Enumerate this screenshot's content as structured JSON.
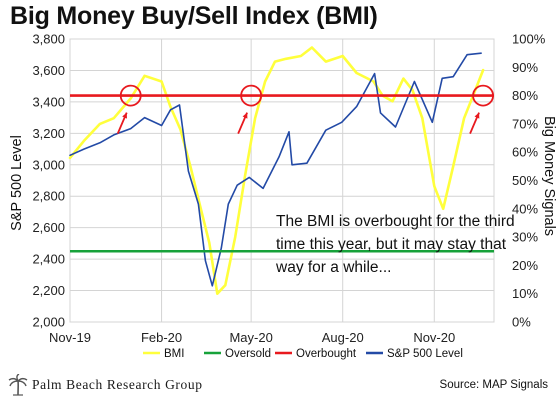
{
  "chart_data": {
    "type": "line",
    "title": "Big Money Buy/Sell Index (BMI)",
    "ylabel": "S&P 500 Level",
    "y2label": "Big Money Signals",
    "x_ticks": [
      "Nov-19",
      "Feb-20",
      "May-20",
      "Aug-20",
      "Nov-20"
    ],
    "ylim": [
      2000,
      3800
    ],
    "y_ticks": [
      "2,000",
      "2,200",
      "2,400",
      "2,600",
      "2,800",
      "3,000",
      "3,200",
      "3,400",
      "3,600",
      "3,800"
    ],
    "y2lim": [
      0,
      100
    ],
    "y2_ticks": [
      "0%",
      "10%",
      "20%",
      "30%",
      "40%",
      "50%",
      "60%",
      "70%",
      "80%",
      "90%",
      "100%"
    ],
    "grid": true,
    "legend_position": "bottom",
    "reference_lines": [
      {
        "name": "Oversold",
        "axis": "right",
        "value": 25,
        "color": "#17a23a"
      },
      {
        "name": "Overbought",
        "axis": "right",
        "value": 80,
        "color": "#e8191e"
      }
    ],
    "series": [
      {
        "name": "BMI",
        "axis": "right",
        "color": "#ffff3c",
        "x": [
          "2019-11-01",
          "2019-11-15",
          "2019-12-01",
          "2019-12-15",
          "2020-01-01",
          "2020-01-15",
          "2020-02-01",
          "2020-02-10",
          "2020-02-20",
          "2020-03-01",
          "2020-03-10",
          "2020-03-20",
          "2020-03-28",
          "2020-04-05",
          "2020-04-15",
          "2020-04-25",
          "2020-05-05",
          "2020-05-15",
          "2020-05-25",
          "2020-06-05",
          "2020-06-20",
          "2020-07-01",
          "2020-07-15",
          "2020-08-01",
          "2020-08-15",
          "2020-09-01",
          "2020-09-10",
          "2020-09-20",
          "2020-10-01",
          "2020-10-10",
          "2020-10-20",
          "2020-11-01",
          "2020-11-10",
          "2020-11-20",
          "2020-12-01",
          "2020-12-10",
          "2020-12-20"
        ],
        "y": [
          58,
          64,
          70,
          72,
          79,
          87,
          85,
          76,
          68,
          55,
          42,
          28,
          10,
          13,
          30,
          52,
          72,
          85,
          92,
          93,
          94,
          97,
          92,
          94,
          88,
          85,
          80,
          78,
          86,
          82,
          72,
          48,
          40,
          55,
          72,
          80,
          89
        ]
      },
      {
        "name": "S&P 500 Level",
        "axis": "left",
        "color": "#234aa6",
        "x": [
          "2019-11-01",
          "2019-11-15",
          "2019-12-01",
          "2019-12-15",
          "2020-01-01",
          "2020-01-15",
          "2020-02-01",
          "2020-02-10",
          "2020-02-19",
          "2020-02-28",
          "2020-03-09",
          "2020-03-16",
          "2020-03-23",
          "2020-04-01",
          "2020-04-08",
          "2020-04-17",
          "2020-04-29",
          "2020-05-13",
          "2020-05-29",
          "2020-06-08",
          "2020-06-11",
          "2020-06-26",
          "2020-07-15",
          "2020-07-31",
          "2020-08-15",
          "2020-09-02",
          "2020-09-08",
          "2020-09-23",
          "2020-10-12",
          "2020-10-30",
          "2020-11-09",
          "2020-11-20",
          "2020-12-04",
          "2020-12-18"
        ],
        "y": [
          3060,
          3100,
          3140,
          3190,
          3230,
          3300,
          3250,
          3350,
          3380,
          2960,
          2750,
          2390,
          2230,
          2470,
          2750,
          2870,
          2920,
          2850,
          3050,
          3210,
          3000,
          3010,
          3220,
          3270,
          3370,
          3580,
          3330,
          3240,
          3530,
          3270,
          3550,
          3560,
          3700,
          3710
        ]
      }
    ],
    "annotation": [
      "The BMI is overbought for the third",
      "time this year, but it may stay that",
      "way for a while..."
    ],
    "highlights": [
      "2020-01-01",
      "2020-05-01",
      "2020-12-20"
    ],
    "legend": [
      "BMI",
      "Oversold",
      "Overbought",
      "S&P 500 Level"
    ]
  },
  "source": "Source: MAP Signals",
  "brand": "Palm Beach Research Group"
}
